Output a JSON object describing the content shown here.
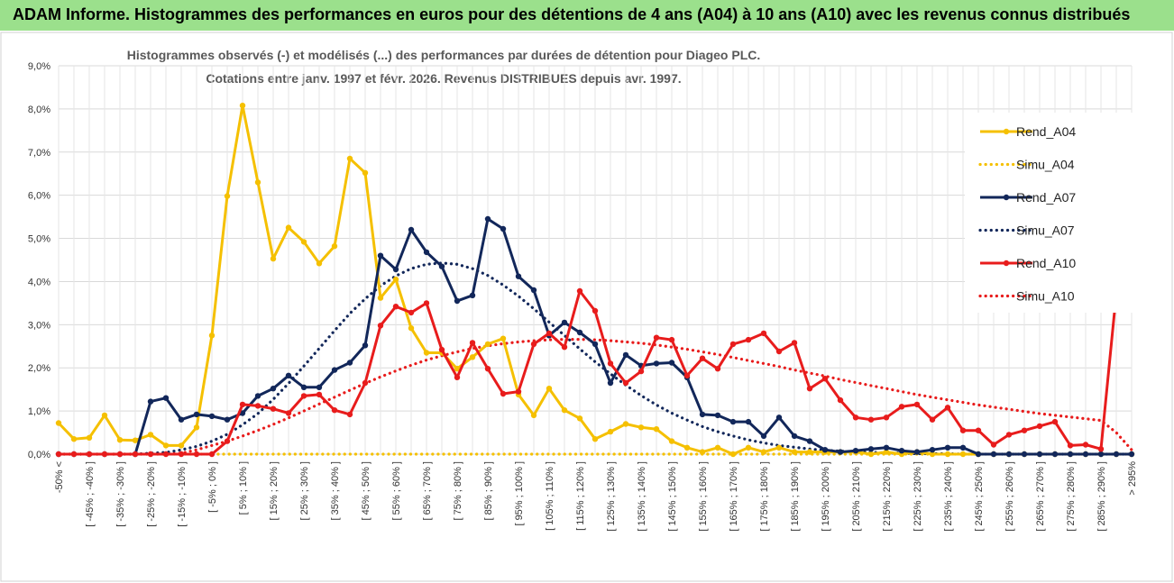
{
  "banner": {
    "title": "ADAM Informe. Histogrammes des performances en euros pour des détentions de 4 ans (A04) à 10 ans (A10) avec les revenus connus distribués"
  },
  "chart_data": {
    "type": "line",
    "title": "Histogrammes observés (-) et modélisés (...) des performances par durées de détention pour Diageo PLC.",
    "subtitle": "Cotations entre janv. 1997 et févr. 2026. Revenus DISTRIBUES depuis avr. 1997.",
    "xlabel": "",
    "ylabel": "",
    "ylim": [
      0,
      9
    ],
    "yticks": [
      "0,0%",
      "1,0%",
      "2,0%",
      "3,0%",
      "4,0%",
      "5,0%",
      "6,0%",
      "7,0%",
      "8,0%",
      "9,0%"
    ],
    "grid": true,
    "legend_position": "right",
    "categories": [
      "-50% <",
      "[ -50% ; -45% ]",
      "[ -45% ; -40% ]",
      "[ -40% ; -35% ]",
      "[ -35% ; -30% ]",
      "[ -30% ; -25% ]",
      "[ -25% ; -20% ]",
      "[ -20% ; -15% ]",
      "[ -15% ; -10% ]",
      "[ -10% ; -5% ]",
      "[ -5% ; 0% ]",
      "[ 0% ; 5% ]",
      "[ 5% ; 10% ]",
      "[ 10% ; 15% ]",
      "[ 15% ; 20% ]",
      "[ 20% ; 25% ]",
      "[ 25% ; 30% ]",
      "[ 30% ; 35% ]",
      "[ 35% ; 40% ]",
      "[ 40% ; 45% ]",
      "[ 45% ; 50% ]",
      "[ 50% ; 55% ]",
      "[ 55% ; 60% ]",
      "[ 60% ; 65% ]",
      "[ 65% ; 70% ]",
      "[ 70% ; 75% ]",
      "[ 75% ; 80% ]",
      "[ 80% ; 85% ]",
      "[ 85% ; 90% ]",
      "[ 90% ; 95% ]",
      "[ 95% ; 100% ]",
      "[ 100% ; 105% ]",
      "[ 105% ; 110% ]",
      "[ 110% ; 115% ]",
      "[ 115% ; 120% ]",
      "[ 120% ; 125% ]",
      "[ 125% ; 130% ]",
      "[ 130% ; 135% ]",
      "[ 135% ; 140% ]",
      "[ 140% ; 145% ]",
      "[ 145% ; 150% ]",
      "[ 150% ; 155% ]",
      "[ 155% ; 160% ]",
      "[ 160% ; 165% ]",
      "[ 165% ; 170% ]",
      "[ 170% ; 175% ]",
      "[ 175% ; 180% ]",
      "[ 180% ; 185% ]",
      "[ 185% ; 190% ]",
      "[ 190% ; 195% ]",
      "[ 195% ; 200% ]",
      "[ 200% ; 205% ]",
      "[ 205% ; 210% ]",
      "[ 210% ; 215% ]",
      "[ 215% ; 220% ]",
      "[ 220% ; 225% ]",
      "[ 225% ; 230% ]",
      "[ 230% ; 235% ]",
      "[ 235% ; 240% ]",
      "[ 240% ; 245% ]",
      "[ 245% ; 250% ]",
      "[ 250% ; 255% ]",
      "[ 255% ; 260% ]",
      "[ 260% ; 265% ]",
      "[ 265% ; 270% ]",
      "[ 270% ; 275% ]",
      "[ 275% ; 280% ]",
      "[ 280% ; 285% ]",
      "[ 285% ; 290% ]",
      "[ 290% ; 295% ]",
      "> 295%"
    ],
    "series": [
      {
        "name": "Rend_A04",
        "style": "solid",
        "color": "#f5c000",
        "values": [
          0.72,
          0.35,
          0.38,
          0.9,
          0.33,
          0.32,
          0.45,
          0.2,
          0.2,
          0.62,
          2.75,
          5.98,
          8.08,
          6.3,
          4.53,
          5.25,
          4.92,
          4.42,
          4.82,
          6.85,
          6.52,
          3.62,
          4.05,
          2.92,
          2.35,
          2.35,
          1.98,
          2.25,
          2.55,
          2.68,
          1.38,
          0.9,
          1.52,
          1.02,
          0.83,
          0.35,
          0.52,
          0.7,
          0.62,
          0.58,
          0.3,
          0.15,
          0.05,
          0.15,
          0.0,
          0.15,
          0.05,
          0.15,
          0.05,
          0.05,
          0.05,
          0.05,
          0.05,
          0.0,
          0.05,
          0.0,
          0.05,
          0.0,
          0.0,
          0.0,
          0.0,
          0.0,
          0.0,
          0.0,
          0.0,
          0.0,
          0.0,
          0.0,
          0.0,
          0.0,
          0.0
        ]
      },
      {
        "name": "Simu_A04",
        "style": "dotted",
        "color": "#f5c000",
        "values": [
          0.0,
          0.0,
          0.0,
          0.0,
          0.0,
          0.0,
          0.0,
          0.0,
          0.0,
          0.0,
          0.0,
          0.0,
          0.0,
          0.0,
          0.0,
          0.0,
          0.0,
          0.0,
          0.0,
          0.0,
          0.0,
          0.0,
          0.0,
          0.0,
          0.0,
          0.0,
          0.0,
          0.0,
          0.0,
          0.0,
          0.0,
          0.0,
          0.0,
          0.0,
          0.0,
          0.0,
          0.0,
          0.0,
          0.0,
          0.0,
          0.0,
          0.0,
          0.0,
          0.0,
          0.0,
          0.0,
          0.0,
          0.0,
          0.0,
          0.0,
          0.0,
          0.0,
          0.0,
          0.0,
          0.0,
          0.0,
          0.0,
          0.0,
          0.0,
          0.0,
          0.0,
          0.0,
          0.0,
          0.0,
          0.0,
          0.0,
          0.0,
          0.0,
          0.0,
          0.0,
          0.0
        ]
      },
      {
        "name": "Rend_A07",
        "style": "solid",
        "color": "#12275a",
        "values": [
          0.0,
          0.0,
          0.0,
          0.0,
          0.0,
          0.0,
          1.22,
          1.3,
          0.8,
          0.92,
          0.88,
          0.8,
          0.95,
          1.35,
          1.52,
          1.82,
          1.55,
          1.55,
          1.95,
          2.12,
          2.52,
          4.6,
          4.28,
          5.2,
          4.68,
          4.35,
          3.55,
          3.68,
          5.45,
          5.22,
          4.12,
          3.8,
          2.75,
          3.05,
          2.82,
          2.55,
          1.65,
          2.3,
          2.05,
          2.1,
          2.12,
          1.78,
          0.92,
          0.9,
          0.75,
          0.75,
          0.42,
          0.85,
          0.42,
          0.3,
          0.1,
          0.05,
          0.08,
          0.12,
          0.15,
          0.08,
          0.05,
          0.1,
          0.15,
          0.15,
          0.0,
          0.0,
          0.0,
          0.0,
          0.0,
          0.0,
          0.0,
          0.0,
          0.0,
          0.0,
          0.0
        ]
      },
      {
        "name": "Simu_A07",
        "style": "dotted",
        "color": "#12275a",
        "values": [
          0.0,
          0.0,
          0.0,
          0.0,
          0.0,
          0.0,
          0.02,
          0.04,
          0.1,
          0.18,
          0.3,
          0.46,
          0.68,
          0.94,
          1.27,
          1.64,
          2.04,
          2.45,
          2.86,
          3.26,
          3.6,
          3.9,
          4.13,
          4.3,
          4.4,
          4.43,
          4.4,
          4.3,
          4.14,
          3.92,
          3.66,
          3.37,
          3.06,
          2.75,
          2.44,
          2.14,
          1.86,
          1.6,
          1.36,
          1.14,
          0.95,
          0.79,
          0.64,
          0.52,
          0.42,
          0.33,
          0.26,
          0.2,
          0.16,
          0.12,
          0.09,
          0.07,
          0.05,
          0.04,
          0.03,
          0.02,
          0.01,
          0.01,
          0.01,
          0.0,
          0.0,
          0.0,
          0.0,
          0.0,
          0.0,
          0.0,
          0.0,
          0.0,
          0.0,
          0.0,
          0.0
        ]
      },
      {
        "name": "Rend_A10",
        "style": "solid",
        "color": "#e81c1c",
        "values": [
          0.0,
          0.0,
          0.0,
          0.0,
          0.0,
          0.0,
          0.0,
          0.0,
          0.0,
          0.0,
          0.0,
          0.3,
          1.15,
          1.12,
          1.05,
          0.95,
          1.35,
          1.38,
          1.02,
          0.92,
          1.65,
          2.98,
          3.42,
          3.28,
          3.5,
          2.42,
          1.78,
          2.58,
          1.98,
          1.4,
          1.45,
          2.55,
          2.8,
          2.48,
          3.78,
          3.32,
          2.1,
          1.65,
          1.92,
          2.7,
          2.65,
          1.82,
          2.22,
          1.98,
          2.55,
          2.65,
          2.8,
          2.38,
          2.58,
          1.52,
          1.75,
          1.25,
          0.85,
          0.8,
          0.85,
          1.1,
          1.15,
          0.8,
          1.08,
          0.55,
          0.55,
          0.22,
          0.45,
          0.55,
          0.65,
          0.75,
          0.2,
          0.22,
          0.12,
          3.72,
          3.72
        ]
      },
      {
        "name": "Simu_A10",
        "style": "dotted",
        "color": "#e81c1c",
        "values": [
          0.0,
          0.0,
          0.0,
          0.0,
          0.0,
          0.0,
          0.0,
          0.0,
          0.02,
          0.1,
          0.2,
          0.3,
          0.42,
          0.55,
          0.69,
          0.84,
          1.0,
          1.16,
          1.32,
          1.48,
          1.64,
          1.79,
          1.93,
          2.06,
          2.18,
          2.28,
          2.37,
          2.45,
          2.51,
          2.56,
          2.6,
          2.63,
          2.65,
          2.66,
          2.66,
          2.65,
          2.63,
          2.6,
          2.57,
          2.53,
          2.48,
          2.43,
          2.37,
          2.31,
          2.24,
          2.17,
          2.1,
          2.03,
          1.95,
          1.88,
          1.81,
          1.73,
          1.66,
          1.59,
          1.52,
          1.45,
          1.38,
          1.32,
          1.26,
          1.2,
          1.14,
          1.09,
          1.04,
          0.99,
          0.94,
          0.9,
          0.86,
          0.82,
          0.78,
          0.5,
          0.1
        ]
      }
    ]
  }
}
